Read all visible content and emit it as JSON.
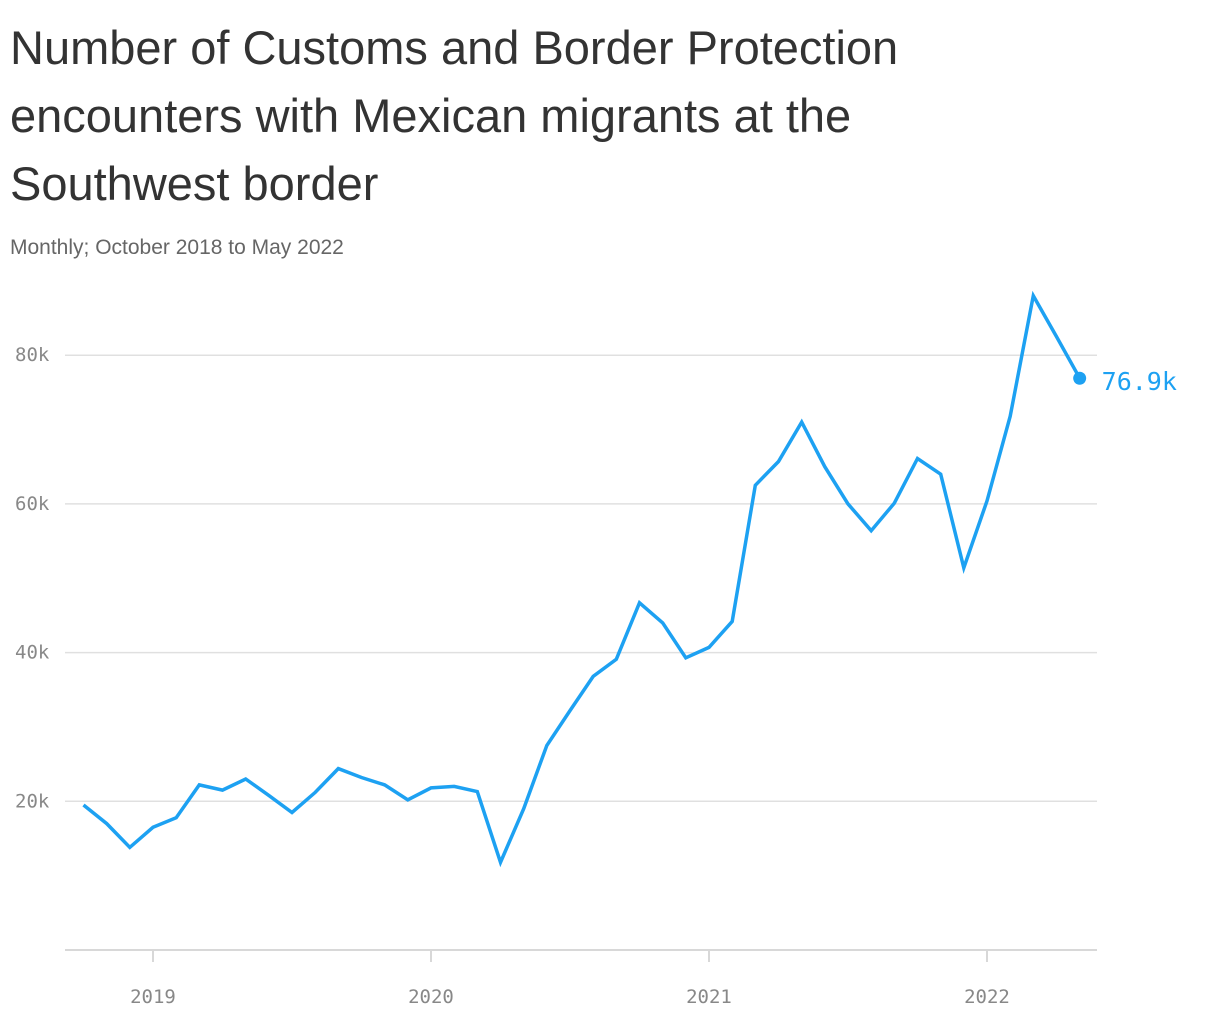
{
  "title": "Number of Customs and Border Protection encounters with Mexican migrants at the Southwest border",
  "subtitle": "Monthly; October 2018 to May 2022",
  "colors": {
    "line": "#1da1f2",
    "grid": "#e0e0e0",
    "tick_text": "#888888"
  },
  "chart_data": {
    "type": "line",
    "title": "Number of Customs and Border Protection encounters with Mexican migrants at the Southwest border",
    "subtitle": "Monthly; October 2018 to May 2022",
    "xlabel": "",
    "ylabel": "",
    "x_start": "2018-10",
    "x_end": "2022-05",
    "x_ticks": [
      "2019",
      "2020",
      "2021",
      "2022"
    ],
    "y_ticks": [
      20000,
      40000,
      60000,
      80000
    ],
    "y_tick_labels": [
      "20k",
      "40k",
      "60k",
      "80k"
    ],
    "ylim": [
      0,
      90000
    ],
    "grid": true,
    "series": [
      {
        "x": [
          "2018-10",
          "2018-11",
          "2018-12",
          "2019-01",
          "2019-02",
          "2019-03",
          "2019-04",
          "2019-05",
          "2019-06",
          "2019-07",
          "2019-08",
          "2019-09",
          "2019-10",
          "2019-11",
          "2019-12",
          "2020-01",
          "2020-02",
          "2020-03",
          "2020-04",
          "2020-05",
          "2020-06",
          "2020-07",
          "2020-08",
          "2020-09",
          "2020-10",
          "2020-11",
          "2020-12",
          "2021-01",
          "2021-02",
          "2021-03",
          "2021-04",
          "2021-05",
          "2021-06",
          "2021-07",
          "2021-08",
          "2021-09",
          "2021-10",
          "2021-11",
          "2021-12",
          "2022-01",
          "2022-02",
          "2022-03",
          "2022-04",
          "2022-05"
        ],
        "values": [
          19500,
          17000,
          13800,
          16500,
          17800,
          22200,
          21500,
          23000,
          20800,
          18500,
          21200,
          24400,
          23200,
          22200,
          20200,
          21800,
          22000,
          21300,
          11800,
          19000,
          27500,
          32200,
          36800,
          39100,
          46700,
          44000,
          39300,
          40700,
          44200,
          62500,
          65700,
          71000,
          65000,
          60000,
          56400,
          60100,
          66100,
          64000,
          51400,
          60400,
          71800,
          88000,
          82500,
          76900
        ]
      }
    ],
    "end_label": "76.9k"
  }
}
